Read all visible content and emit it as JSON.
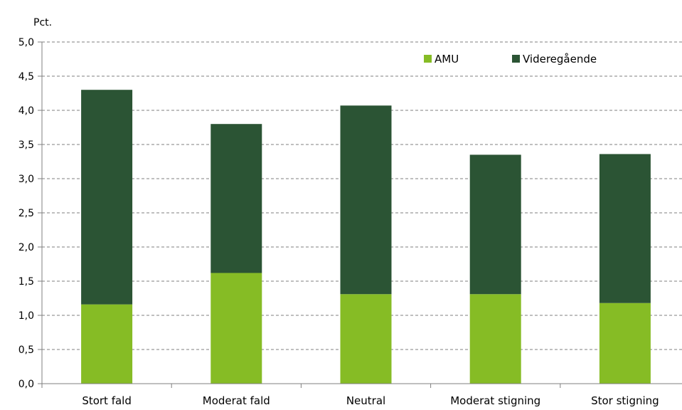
{
  "chart_data": {
    "type": "bar",
    "stacked": true,
    "ylabel": "Pct.",
    "ylim": [
      0,
      5
    ],
    "yticks": [
      "0,0",
      "0,5",
      "1,0",
      "1,5",
      "2,0",
      "2,5",
      "3,0",
      "3,5",
      "4,0",
      "4,5",
      "5,0"
    ],
    "ytick_values": [
      0,
      0.5,
      1,
      1.5,
      2,
      2.5,
      3,
      3.5,
      4,
      4.5,
      5
    ],
    "categories": [
      "Stort fald",
      "Moderat fald",
      "Neutral",
      "Moderat stigning",
      "Stor stigning"
    ],
    "series": [
      {
        "name": "AMU",
        "color": "#86bc25",
        "values": [
          1.16,
          1.62,
          1.31,
          1.31,
          1.18
        ]
      },
      {
        "name": "Videregående",
        "color": "#2b5434",
        "values": [
          3.14,
          2.18,
          2.76,
          2.04,
          2.18
        ]
      }
    ],
    "grid": true,
    "legend_position": "top-right"
  }
}
